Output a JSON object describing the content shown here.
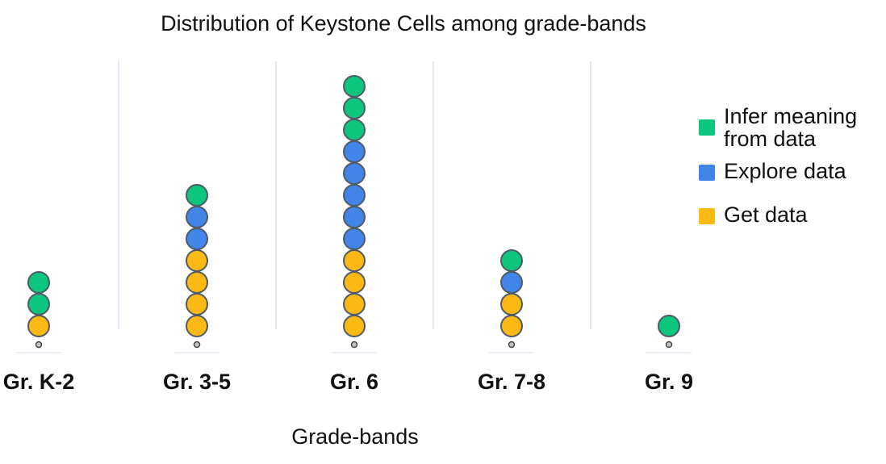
{
  "chart_data": {
    "type": "dot",
    "title": "Distribution of Keystone Cells among grade-bands",
    "xlabel": "Grade-bands",
    "ylabel": "",
    "categories": [
      "Gr. K-2",
      "Gr. 3-5",
      "Gr. 6",
      "Gr. 7-8",
      "Gr. 9"
    ],
    "series": [
      {
        "name": "Get data",
        "color": "#FDB913",
        "values": [
          1,
          4,
          4,
          2,
          0
        ]
      },
      {
        "name": "Explore data",
        "color": "#4285E8",
        "values": [
          0,
          2,
          5,
          1,
          0
        ]
      },
      {
        "name": "Infer meaning from data",
        "color": "#0CC67E",
        "values": [
          2,
          1,
          3,
          1,
          1
        ]
      }
    ],
    "stack_order": [
      "Get data",
      "Explore data",
      "Infer meaning from data"
    ],
    "legend_order": [
      "Infer meaning from data",
      "Explore data",
      "Get data"
    ],
    "legend_position": "right",
    "grid": "vertical separators"
  }
}
